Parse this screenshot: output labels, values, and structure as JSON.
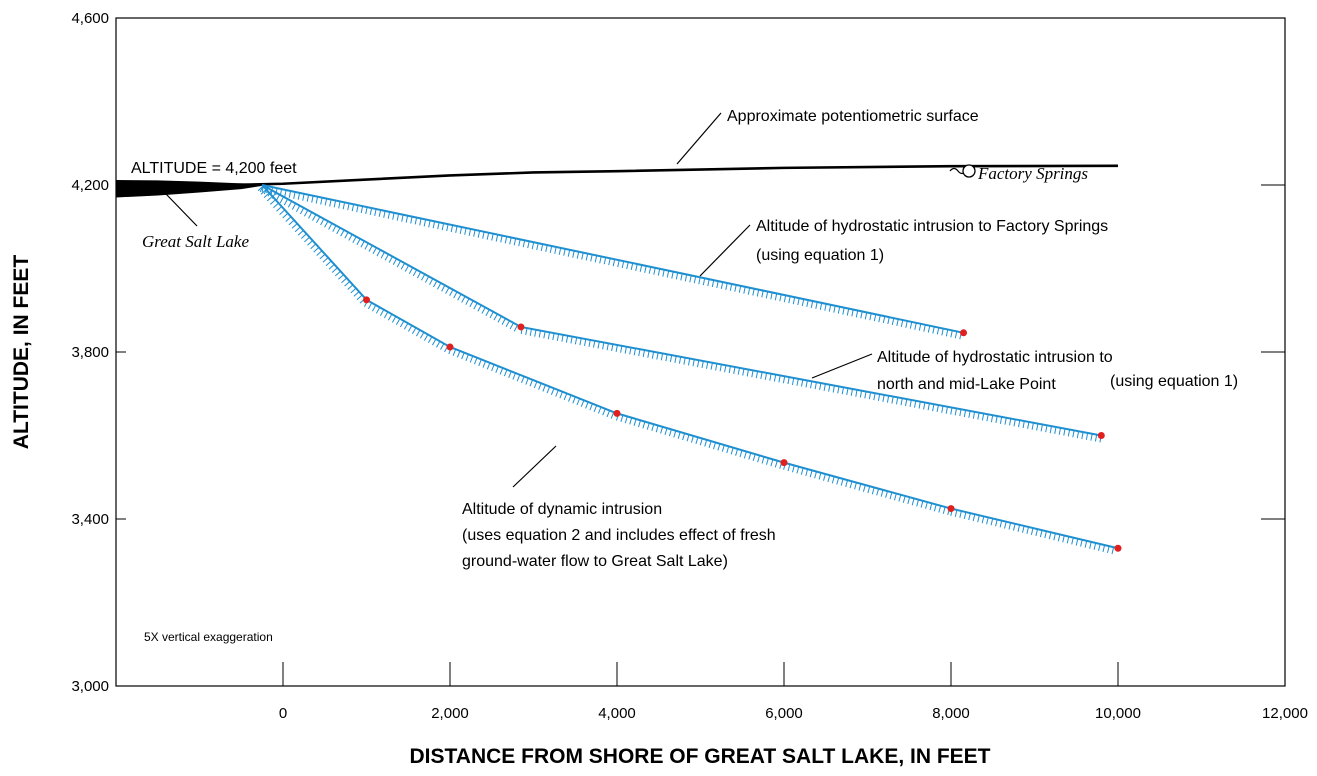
{
  "chart_data": {
    "type": "line",
    "xlabel": "DISTANCE FROM SHORE OF GREAT SALT LAKE, IN FEET",
    "ylabel": "ALTITUDE, IN FEET",
    "xlim": [
      -2000,
      12000
    ],
    "ylim": [
      3000,
      4600
    ],
    "x_ticks": [
      0,
      2000,
      4000,
      6000,
      8000,
      10000,
      12000
    ],
    "x_tick_labels": [
      "0",
      "2,000",
      "4,000",
      "6,000",
      "8,000",
      "10,000",
      "12,000"
    ],
    "y_ticks": [
      3000,
      3400,
      3800,
      4200,
      4600
    ],
    "y_tick_labels": [
      "3,000",
      "3,400",
      "3,800",
      "4,200",
      "4,600"
    ],
    "grid": false,
    "series": [
      {
        "name": "Approximate potentiometric surface",
        "color": "#000000",
        "x": [
          -2000,
          -1500,
          -1000,
          -400,
          0,
          1000,
          2000,
          3000,
          4000,
          6000,
          8000,
          10000
        ],
        "y": [
          4198,
          4199,
          4200,
          4201,
          4203,
          4213,
          4223,
          4230,
          4233,
          4241,
          4245,
          4246
        ]
      },
      {
        "name": "Altitude of hydrostatic intrusion to Factory Springs",
        "color": "#1e8fd0",
        "x": [
          -250,
          8150
        ],
        "y": [
          4200,
          3846
        ]
      },
      {
        "name": "Altitude of hydrostatic intrusion to north and mid-Lake Point",
        "color": "#1e8fd0",
        "x": [
          -250,
          2850,
          9800
        ],
        "y": [
          4200,
          3860,
          3600
        ]
      },
      {
        "name": "Altitude of dynamic intrusion",
        "color": "#1e8fd0",
        "x": [
          -250,
          1000,
          2000,
          4000,
          6000,
          8000,
          10000
        ],
        "y": [
          4200,
          3925,
          3812,
          3653,
          3535,
          3425,
          3330
        ]
      }
    ],
    "points": [
      {
        "x": 1000,
        "y": 3925
      },
      {
        "x": 2000,
        "y": 3812
      },
      {
        "x": 2850,
        "y": 3860
      },
      {
        "x": 4000,
        "y": 3653
      },
      {
        "x": 6000,
        "y": 3535
      },
      {
        "x": 8000,
        "y": 3425
      },
      {
        "x": 8150,
        "y": 3846
      },
      {
        "x": 9800,
        "y": 3600
      },
      {
        "x": 10000,
        "y": 3330
      }
    ],
    "point_color": "#e0201e",
    "lake_surface": {
      "x": [
        -2000,
        -1500,
        -1000,
        -500,
        -250
      ],
      "y_top": [
        4212,
        4211,
        4208,
        4204,
        4201
      ],
      "y_bottom": [
        4170,
        4175,
        4182,
        4190,
        4198
      ]
    }
  },
  "annotations": {
    "altitude_label": "ALTITUDE = 4,200 feet",
    "great_salt_lake": "Great Salt Lake",
    "potentiometric": "Approximate potentiometric surface",
    "factory_springs": "Factory Springs",
    "hydro_fs_line1": "Altitude of hydrostatic intrusion to Factory Springs",
    "hydro_fs_line2": "(using equation 1)",
    "hydro_nm_line1": "Altitude of hydrostatic intrusion to",
    "hydro_nm_line2": "north and mid-Lake Point",
    "hydro_nm_line3": "(using equation 1)",
    "dynamic_line1": "Altitude of dynamic intrusion",
    "dynamic_line2": "(uses equation 2 and includes effect of fresh",
    "dynamic_line3": "ground-water flow to Great Salt Lake)",
    "exaggeration": "5X vertical exaggeration"
  }
}
